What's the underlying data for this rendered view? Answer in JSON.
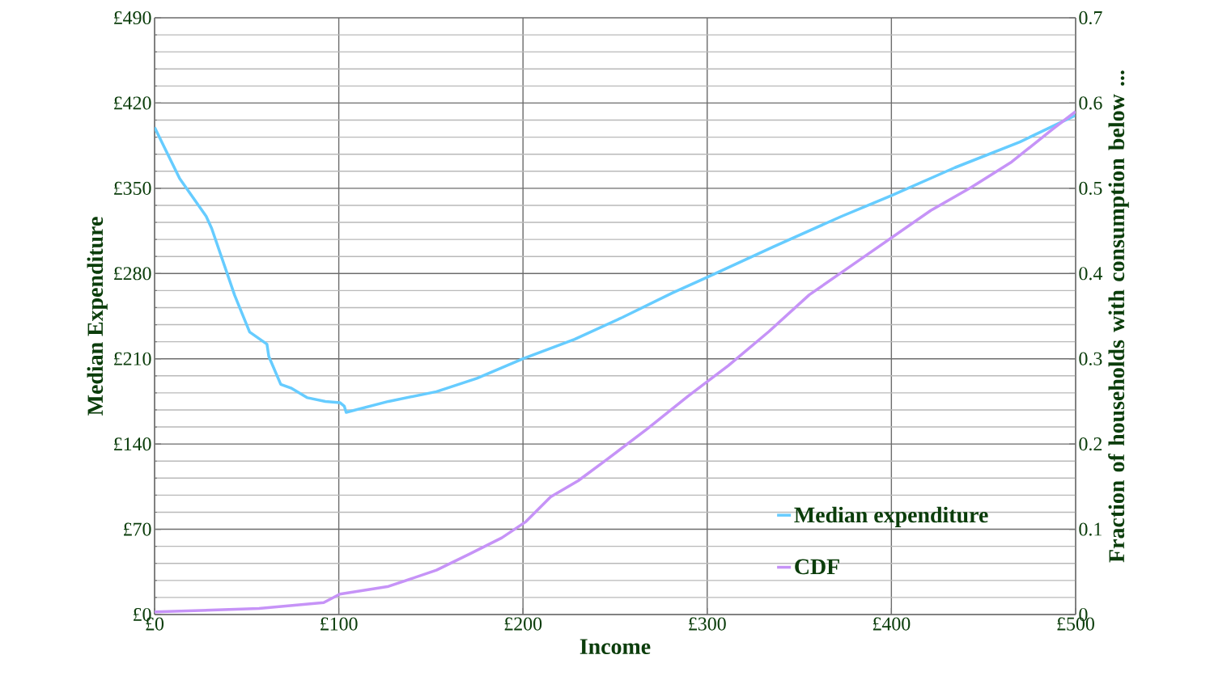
{
  "chart_data": {
    "type": "line",
    "xlabel": "Income",
    "ylabel": "Median Expenditure",
    "y2label": "Fraction of households with consumption below ...",
    "xlim": [
      0,
      500
    ],
    "xticks": [
      {
        "value": 0,
        "label": "£0"
      },
      {
        "value": 100,
        "label": "£100"
      },
      {
        "value": 200,
        "label": "£200"
      },
      {
        "value": 300,
        "label": "£300"
      },
      {
        "value": 400,
        "label": "£400"
      },
      {
        "value": 500,
        "label": "£500"
      }
    ],
    "ylim": [
      0,
      490
    ],
    "yticks": [
      {
        "value": 0,
        "label": "£0"
      },
      {
        "value": 70,
        "label": "£70"
      },
      {
        "value": 140,
        "label": "£140"
      },
      {
        "value": 210,
        "label": "£210"
      },
      {
        "value": 280,
        "label": "£280"
      },
      {
        "value": 350,
        "label": "£350"
      },
      {
        "value": 420,
        "label": "£420"
      },
      {
        "value": 490,
        "label": "£490"
      }
    ],
    "y2lim": [
      0,
      0.7
    ],
    "y2ticks": [
      0,
      0.1,
      0.2,
      0.3,
      0.4,
      0.5,
      0.6,
      0.7
    ],
    "grid": true,
    "legend": "bottom right",
    "marker": "none",
    "line_style": "solid",
    "series": [
      {
        "name": "Median expenditure",
        "color": "#66ccff",
        "x": [
          0,
          13.6,
          28,
          31,
          43.5,
          51.6,
          61,
          62,
          68.5,
          74,
          83,
          92.7,
          100.6,
          103,
          104,
          127,
          153,
          175,
          200,
          228,
          254,
          281,
          300,
          336,
          373,
          400,
          434.5,
          469.7,
          500
        ],
        "values": [
          400,
          358,
          327,
          317,
          262,
          232,
          222,
          212,
          189,
          186,
          178,
          175,
          174,
          171,
          166,
          175,
          183,
          194,
          210,
          226,
          244,
          264,
          277,
          302,
          327,
          344,
          367,
          388,
          410
        ]
      },
      {
        "name": "CDF",
        "color": "#c693f7",
        "axis": "y2",
        "x": [
          0,
          56.7,
          91.8,
          100.6,
          127,
          153,
          171,
          188.5,
          201.6,
          215,
          230,
          245.6,
          267.6,
          289.5,
          311.5,
          333.5,
          355.4,
          377.4,
          399.4,
          421.4,
          443.3,
          465.3,
          487.3,
          500
        ],
        "values": [
          0.003,
          0.007,
          0.014,
          0.024,
          0.033,
          0.052,
          0.071,
          0.09,
          0.109,
          0.138,
          0.157,
          0.182,
          0.218,
          0.256,
          0.292,
          0.332,
          0.375,
          0.408,
          0.441,
          0.474,
          0.501,
          0.531,
          0.569,
          0.59
        ]
      }
    ]
  }
}
